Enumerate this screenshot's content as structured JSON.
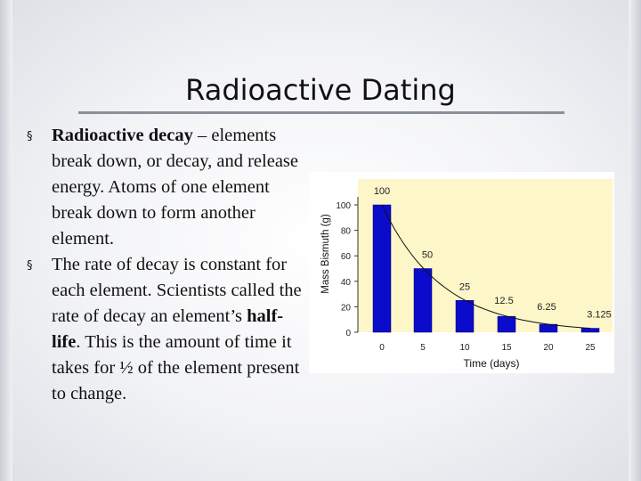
{
  "slide": {
    "title": "Radioactive Dating"
  },
  "bullets": [
    {
      "marker": "§",
      "term": "Radioactive decay",
      "text": " – elements break down, or decay, and release energy. Atoms of one element break down to form another element."
    },
    {
      "marker": "§",
      "pre": "The rate of decay is constant for each element.  Scientists called the rate of decay an element’s ",
      "term": "half-life",
      "post": ".  This is the amount of time it takes for ½ of the element present to change."
    }
  ],
  "chart_data": {
    "type": "bar",
    "categories": [
      "0",
      "5",
      "10",
      "15",
      "20",
      "25"
    ],
    "values": [
      100,
      50,
      25,
      12.5,
      6.25,
      3.125
    ],
    "data_labels": [
      "100",
      "50",
      "25",
      "12.5",
      "6.25",
      "3.125"
    ],
    "yticks": [
      "0",
      "20",
      "40",
      "60",
      "80",
      "100"
    ],
    "ylim": [
      0,
      100
    ],
    "xlabel": "Time (days)",
    "ylabel": "Mass Bismuth (g)",
    "series_color": "#0b0bcc",
    "plot_background": "#fdf6c8",
    "trendline": "exponential decay curve"
  }
}
